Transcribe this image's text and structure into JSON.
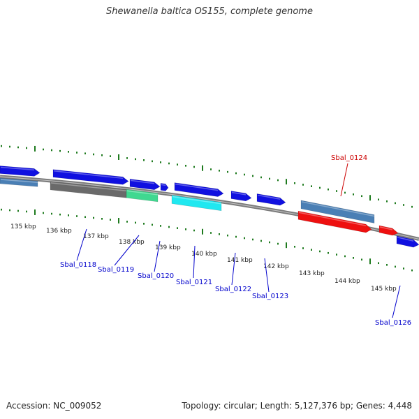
{
  "title": "Shewanella baltica OS155, complete genome",
  "footer": {
    "accession": "Accession: NC_009052",
    "topology": "Topology: circular; Length: 5,127,376 bp; Genes: 4,448"
  },
  "colors": {
    "backbone": "#7a7a7a",
    "forward_gene": "#1010e0",
    "tick": "#1e7a1e",
    "label_blue": "#0000cc",
    "label_red": "#cc0000"
  },
  "scale_labels": [
    "135 kbp",
    "136 kbp",
    "137 kbp",
    "138 kbp",
    "139 kbp",
    "140 kbp",
    "141 kbp",
    "142 kbp",
    "143 kbp",
    "144 kbp",
    "145 kbp"
  ],
  "features": [
    {
      "name": "",
      "color": "#1010e0",
      "track": "plus1"
    },
    {
      "name": "",
      "color": "#1010e0",
      "track": "plus1"
    },
    {
      "name": "",
      "color": "#1010e0",
      "track": "plus1"
    },
    {
      "name": "",
      "color": "#1010e0",
      "track": "plus1"
    },
    {
      "name": "",
      "color": "#1010e0",
      "track": "plus1"
    },
    {
      "name": "",
      "color": "#1010e0",
      "track": "plus1"
    },
    {
      "name": "",
      "color": "#1010e0",
      "track": "plus1"
    },
    {
      "name": "",
      "color": "#4a7fb5",
      "track": "plus2"
    },
    {
      "name": "",
      "color": "#4a7fb5",
      "track": "plus2"
    },
    {
      "name": "",
      "color": "#6a6a6a",
      "track": "plus2"
    },
    {
      "name": "",
      "color": "#40d890",
      "track": "plus2"
    },
    {
      "name": "",
      "color": "#20e8f0",
      "track": "plus2"
    },
    {
      "name": "",
      "color": "#ee1010",
      "track": "plus2"
    },
    {
      "name": "",
      "color": "#ee1010",
      "track": "plus2"
    },
    {
      "name": "",
      "color": "#1010e0",
      "track": "plus1"
    }
  ],
  "gene_labels": [
    {
      "text": "Sbal_0118",
      "color": "#0000cc"
    },
    {
      "text": "Sbal_0119",
      "color": "#0000cc"
    },
    {
      "text": "Sbal_0120",
      "color": "#0000cc"
    },
    {
      "text": "Sbal_0121",
      "color": "#0000cc"
    },
    {
      "text": "Sbal_0122",
      "color": "#0000cc"
    },
    {
      "text": "Sbal_0123",
      "color": "#0000cc"
    },
    {
      "text": "Sbal_0124",
      "color": "#cc0000"
    },
    {
      "text": "Sbal_0126",
      "color": "#0000cc"
    }
  ]
}
